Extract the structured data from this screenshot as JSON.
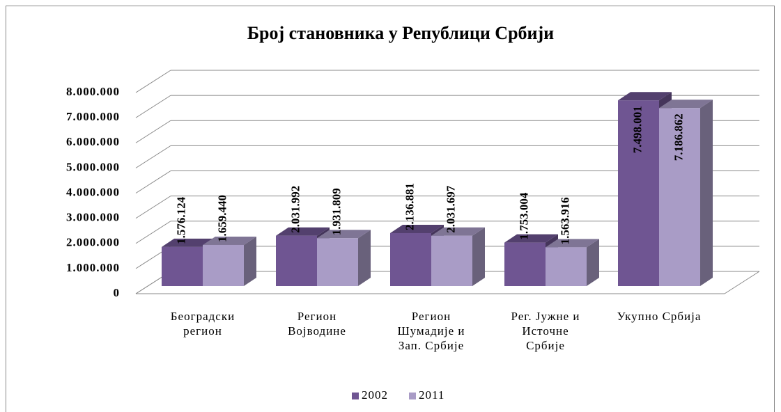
{
  "chart_data": {
    "type": "bar",
    "title": "Број становника у Републици Србији",
    "categories": [
      "Београдски\nрегион",
      "Регион\nВојводине",
      "Регион\nШумадије и\nЗап. Србије",
      "Рег. Јужне и\nИсточне\nСрбије",
      "Укупно Србија"
    ],
    "series": [
      {
        "name": "2002",
        "color": "#6f5592",
        "values": [
          1576124,
          2031992,
          2136881,
          1753004,
          7498001
        ],
        "value_labels": [
          "1.576.124",
          "2.031.992",
          "2.136.881",
          "1.753.004",
          "7.498.001"
        ]
      },
      {
        "name": "2011",
        "color": "#a99cc6",
        "values": [
          1659440,
          1931809,
          2031697,
          1563916,
          7186862
        ],
        "value_labels": [
          "1.659.440",
          "1.931.809",
          "2.031.697",
          "1.563.916",
          "7.186.862"
        ]
      }
    ],
    "ylim": [
      0,
      8000000
    ],
    "yticks": [
      0,
      {
        "value": 1000000,
        "label": "1.000.000"
      },
      {
        "value": 2000000,
        "label": "2.000.000"
      },
      {
        "value": 3000000,
        "label": "3.000.000"
      },
      {
        "value": 4000000,
        "label": "4.000.000"
      },
      {
        "value": 5000000,
        "label": "5.000.000"
      },
      {
        "value": 6000000,
        "label": "6.000.000"
      },
      {
        "value": 7000000,
        "label": "7.000.000"
      },
      {
        "value": 8000000,
        "label": "8.000.000"
      }
    ],
    "grid": true,
    "legend": "bottom"
  }
}
